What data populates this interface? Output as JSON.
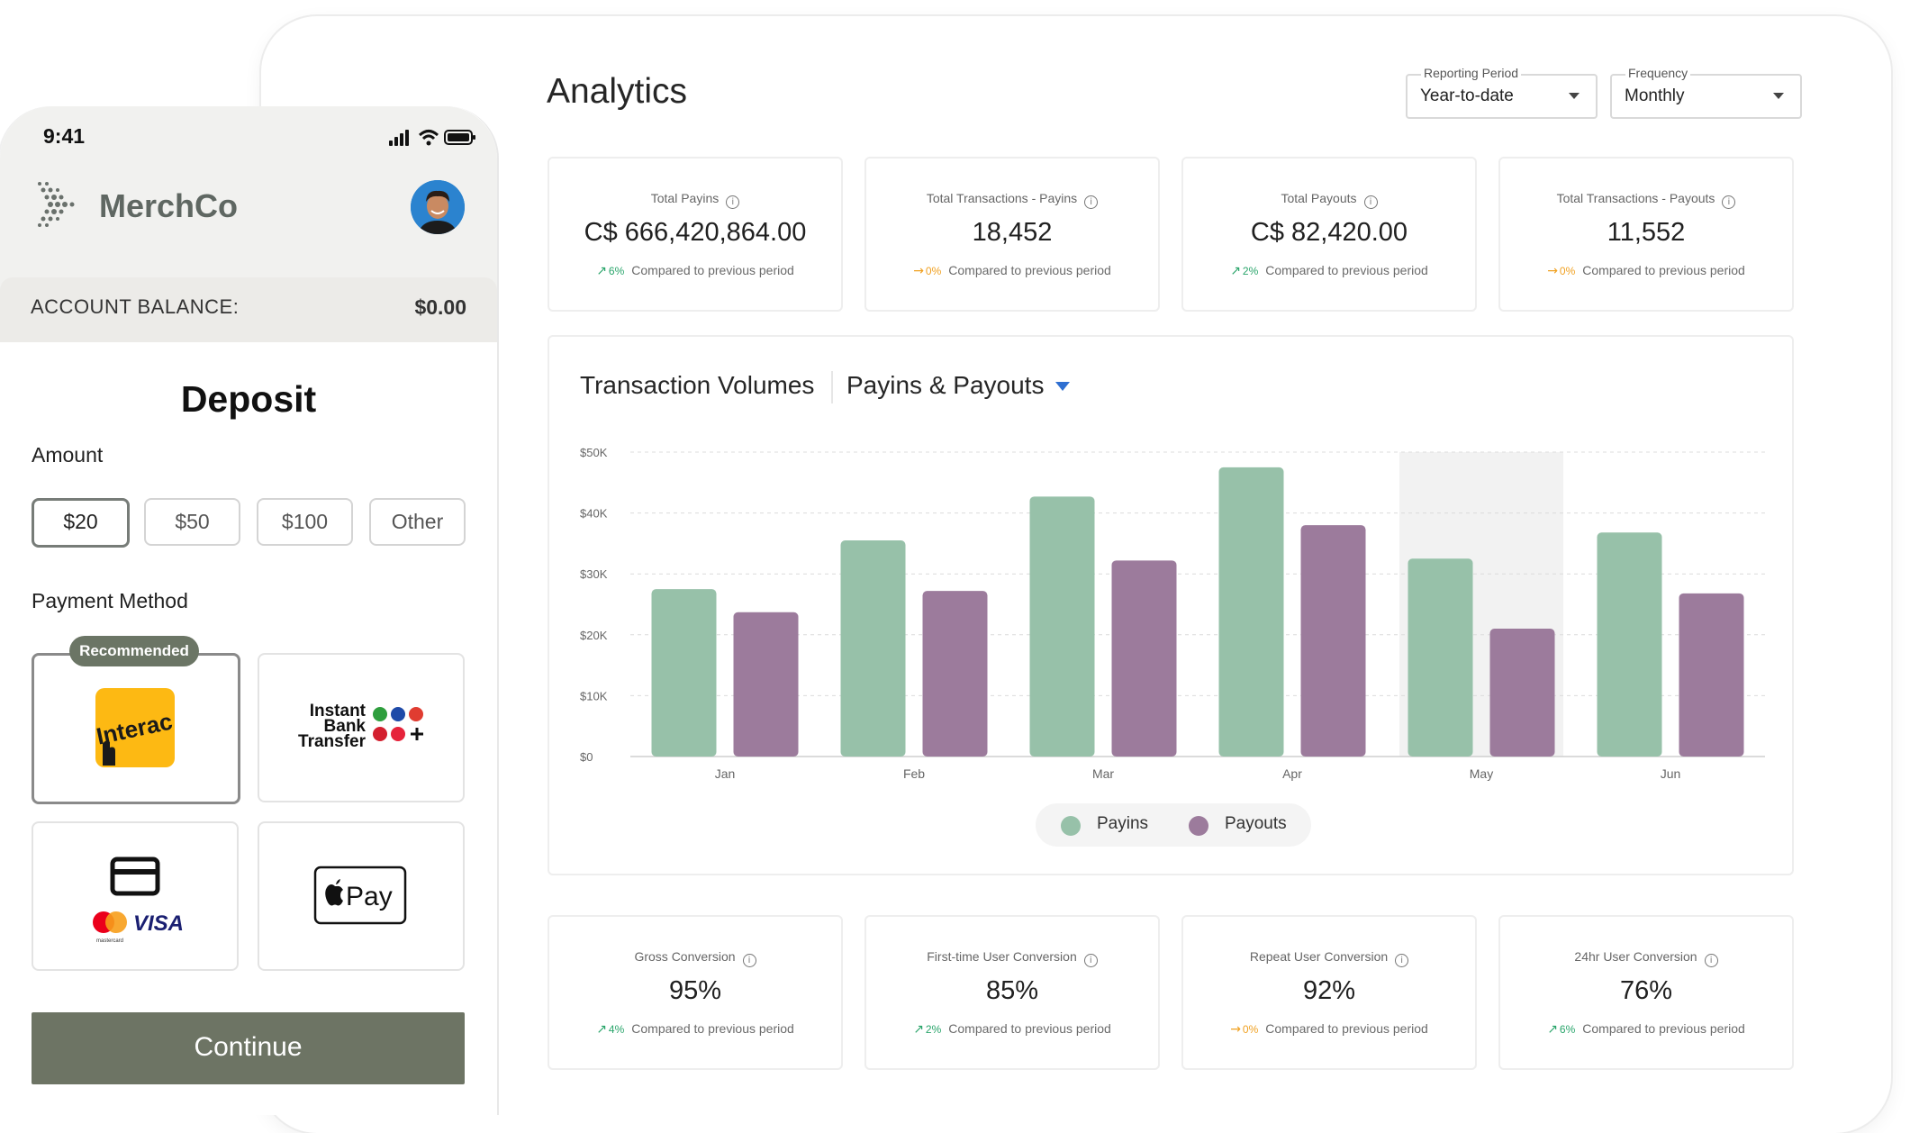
{
  "analytics": {
    "title": "Analytics",
    "reporting_period": {
      "label": "Reporting Period",
      "value": "Year-to-date"
    },
    "frequency": {
      "label": "Frequency",
      "value": "Monthly"
    },
    "top_stats": [
      {
        "label": "Total Payins",
        "value": "C$ 666,420,864.00",
        "pct": "6%",
        "trend": "up",
        "compare": "Compared to previous period"
      },
      {
        "label": "Total Transactions - Payins",
        "value": "18,452",
        "pct": "0%",
        "trend": "flat",
        "compare": "Compared to previous period"
      },
      {
        "label": "Total Payouts",
        "value": "C$ 82,420.00",
        "pct": "2%",
        "trend": "up",
        "compare": "Compared to previous period"
      },
      {
        "label": "Total Transactions - Payouts",
        "value": "11,552",
        "pct": "0%",
        "trend": "flat",
        "compare": "Compared to previous period"
      }
    ],
    "bottom_stats": [
      {
        "label": "Gross Conversion",
        "value": "95%",
        "pct": "4%",
        "trend": "up",
        "compare": "Compared to previous period"
      },
      {
        "label": "First-time User Conversion",
        "value": "85%",
        "pct": "2%",
        "trend": "up",
        "compare": "Compared to previous period"
      },
      {
        "label": "Repeat User Conversion",
        "value": "92%",
        "pct": "0%",
        "trend": "flat",
        "compare": "Compared to previous period"
      },
      {
        "label": "24hr User Conversion",
        "value": "76%",
        "pct": "6%",
        "trend": "up",
        "compare": "Compared to previous period"
      }
    ],
    "chart": {
      "title": "Transaction Volumes",
      "selector": "Payins & Payouts"
    }
  },
  "chart_data": {
    "type": "bar",
    "title": "Transaction Volumes",
    "categories": [
      "Jan",
      "Feb",
      "Mar",
      "Apr",
      "May",
      "Jun"
    ],
    "y_ticks": [
      "$0",
      "$10K",
      "$20K",
      "$30K",
      "$40K",
      "$50K"
    ],
    "ylim": [
      0,
      50000
    ],
    "grid": true,
    "highlighted_category": "May",
    "legend_placement": "bottom-center",
    "series": [
      {
        "name": "Payins",
        "color": "#97c1a9",
        "values": [
          27500,
          35500,
          42700,
          47500,
          32500,
          36800
        ]
      },
      {
        "name": "Payouts",
        "color": "#9c7b9c",
        "values": [
          23700,
          27200,
          32200,
          38000,
          21000,
          26800
        ]
      }
    ]
  },
  "phone": {
    "time": "9:41",
    "brand": "MerchCo",
    "balance_label": "ACCOUNT BALANCE:",
    "balance_value": "$0.00",
    "deposit_title": "Deposit",
    "amount_label": "Amount",
    "amounts": [
      "$20",
      "$50",
      "$100",
      "Other"
    ],
    "selected_amount": "$20",
    "payment_label": "Payment Method",
    "recommended": "Recommended",
    "interac": "Interac",
    "bank_transfer": [
      "Instant",
      "Bank",
      "Transfer"
    ],
    "visa": "VISA",
    "mastercard": "mastercard",
    "apple_pay": "Pay",
    "continue": "Continue"
  }
}
